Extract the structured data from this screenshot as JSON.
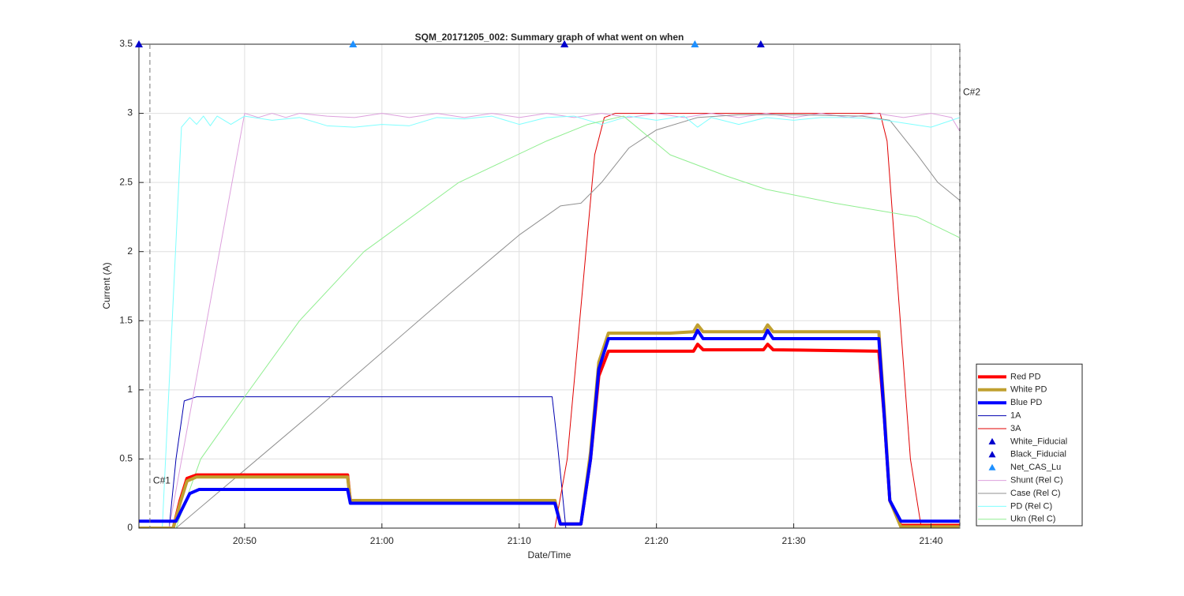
{
  "chart_data": {
    "type": "line",
    "title": "SQM_20171205_002: Summary graph of what went on when",
    "x_label": "Date/Time",
    "y_label": "Current (A)",
    "xlim": [
      1242.3,
      1302.1
    ],
    "xticks": [
      {
        "value": 1250,
        "label": "20:50"
      },
      {
        "value": 1260,
        "label": "21:00"
      },
      {
        "value": 1270,
        "label": "21:10"
      },
      {
        "value": 1280,
        "label": "21:20"
      },
      {
        "value": 1290,
        "label": "21:30"
      },
      {
        "value": 1300,
        "label": "21:40"
      }
    ],
    "ylim": [
      0,
      3.5
    ],
    "yticks": [
      0,
      0.5,
      1,
      1.5,
      2,
      2.5,
      3,
      3.5
    ],
    "grid": true,
    "legend": "lower-right-outside",
    "cursors": [
      {
        "label": "C#1",
        "x": 1243.1,
        "y": 0.34
      },
      {
        "label": "C#2",
        "x": 1302.1,
        "y": 3.15
      }
    ],
    "series": [
      {
        "name": "Red PD",
        "color": "#ff0000",
        "width": 4,
        "x": [
          1242.3,
          1244.8,
          1245.3,
          1245.8,
          1246.5,
          1257.5,
          1257.7,
          1272.6,
          1273.0,
          1274.5,
          1275.2,
          1275.8,
          1276.5,
          1281.0,
          1282.7,
          1283.0,
          1283.4,
          1287.8,
          1288.1,
          1288.5,
          1296.2,
          1296.6,
          1297.0,
          1297.8,
          1302.1
        ],
        "values": [
          0,
          0,
          0.2,
          0.36,
          0.385,
          0.385,
          0.2,
          0.2,
          0.03,
          0.03,
          0.5,
          1.1,
          1.28,
          1.28,
          1.28,
          1.33,
          1.29,
          1.29,
          1.33,
          1.29,
          1.28,
          0.8,
          0.2,
          0.02,
          0.02
        ]
      },
      {
        "name": "White PD",
        "color": "#c0a030",
        "width": 4,
        "x": [
          1242.3,
          1244.8,
          1245.3,
          1245.8,
          1246.5,
          1257.5,
          1257.7,
          1272.6,
          1273.0,
          1274.5,
          1275.2,
          1275.8,
          1276.5,
          1281.0,
          1282.7,
          1283.0,
          1283.4,
          1287.8,
          1288.1,
          1288.5,
          1296.2,
          1296.6,
          1297.0,
          1297.8,
          1302.1
        ],
        "values": [
          0,
          0,
          0.18,
          0.34,
          0.37,
          0.37,
          0.2,
          0.2,
          0.03,
          0.03,
          0.55,
          1.2,
          1.41,
          1.41,
          1.42,
          1.47,
          1.42,
          1.42,
          1.47,
          1.42,
          1.42,
          0.85,
          0.2,
          0.01,
          0.01
        ]
      },
      {
        "name": "Blue PD",
        "color": "#0000ff",
        "width": 4,
        "x": [
          1242.3,
          1245.0,
          1245.5,
          1246.0,
          1246.7,
          1257.5,
          1257.7,
          1272.6,
          1273.0,
          1274.5,
          1275.2,
          1275.8,
          1276.5,
          1281.0,
          1282.7,
          1283.0,
          1283.4,
          1287.8,
          1288.1,
          1288.5,
          1296.2,
          1296.6,
          1297.0,
          1297.8,
          1302.1
        ],
        "values": [
          0.05,
          0.05,
          0.15,
          0.25,
          0.28,
          0.28,
          0.18,
          0.18,
          0.03,
          0.03,
          0.5,
          1.15,
          1.37,
          1.37,
          1.37,
          1.43,
          1.37,
          1.37,
          1.43,
          1.37,
          1.37,
          0.8,
          0.2,
          0.05,
          0.05
        ]
      },
      {
        "name": "1A",
        "color": "#0000b0",
        "width": 1,
        "x": [
          1242.3,
          1244.5,
          1245.0,
          1245.6,
          1246.5,
          1272.4,
          1272.8,
          1273.4,
          1302.1
        ],
        "values": [
          0,
          0,
          0.5,
          0.92,
          0.95,
          0.95,
          0.6,
          0,
          0
        ]
      },
      {
        "name": "3A",
        "color": "#e00000",
        "width": 1,
        "x": [
          1242.3,
          1272.6,
          1273.5,
          1275.5,
          1276.2,
          1277.0,
          1296.3,
          1296.8,
          1298.5,
          1299.3,
          1302.1
        ],
        "values": [
          0,
          0,
          0.5,
          2.7,
          2.97,
          3.0,
          3.0,
          2.8,
          0.5,
          0,
          0
        ]
      },
      {
        "name": "White_Fiducial",
        "color": "#0000cd",
        "marker": "triangle",
        "x": [
          1242.3,
          1273.3,
          1287.6
        ],
        "values": [
          3.5,
          3.5,
          3.5
        ]
      },
      {
        "name": "Black_Fiducial",
        "color": "#0000cd",
        "marker": "triangle",
        "x": [
          1273.3
        ],
        "values": [
          3.5
        ]
      },
      {
        "name": "Net_CAS_Lu",
        "color": "#1e90ff",
        "marker": "triangle",
        "x": [
          1257.9,
          1282.8
        ],
        "values": [
          3.5,
          3.5
        ]
      },
      {
        "name": "Shunt (Rel C)",
        "color": "#dda0dd",
        "width": 1,
        "x": [
          1242.3,
          1244.5,
          1250.0,
          1251.0,
          1252.0,
          1253.0,
          1254.0,
          1256.0,
          1258.0,
          1260.0,
          1262.0,
          1264.0,
          1266.0,
          1268.0,
          1270.0,
          1272.0,
          1274.0,
          1276.0,
          1278.0,
          1280.0,
          1282.0,
          1284.0,
          1286.0,
          1288.0,
          1290.0,
          1292.0,
          1294.0,
          1296.0,
          1298.0,
          1300.0,
          1301.5,
          1302.1
        ],
        "values": [
          0,
          0,
          3.0,
          2.97,
          3.0,
          2.97,
          3.0,
          2.98,
          2.97,
          3.0,
          2.97,
          3.0,
          2.97,
          3.0,
          2.97,
          3.0,
          2.97,
          3.0,
          2.97,
          3.0,
          2.97,
          3.0,
          2.97,
          3.0,
          2.97,
          3.0,
          2.97,
          3.0,
          2.97,
          3.0,
          2.97,
          2.87
        ]
      },
      {
        "name": "Case (Rel C)",
        "color": "#909090",
        "width": 1,
        "x": [
          1242.3,
          1245.0,
          1250.0,
          1255.0,
          1260.0,
          1265.0,
          1270.0,
          1273.0,
          1274.5,
          1276.0,
          1278.0,
          1280.0,
          1283.0,
          1286.0,
          1290.0,
          1295.0,
          1297.0,
          1299.0,
          1300.5,
          1302.1
        ],
        "values": [
          0,
          0,
          0.42,
          0.84,
          1.27,
          1.7,
          2.12,
          2.33,
          2.35,
          2.5,
          2.75,
          2.88,
          2.97,
          2.99,
          2.99,
          2.98,
          2.95,
          2.7,
          2.5,
          2.37
        ]
      },
      {
        "name": "PD (Rel C)",
        "color": "#7fffff",
        "width": 1,
        "x": [
          1242.3,
          1244.0,
          1245.4,
          1246.0,
          1246.5,
          1247.0,
          1247.5,
          1248.0,
          1249.0,
          1250.0,
          1252.0,
          1254.0,
          1256.0,
          1258.0,
          1260.0,
          1262.0,
          1264.0,
          1266.0,
          1268.0,
          1270.0,
          1272.0,
          1274.0,
          1276.0,
          1278.0,
          1280.0,
          1282.0,
          1283.0,
          1284.0,
          1286.0,
          1288.0,
          1290.0,
          1292.0,
          1294.0,
          1296.0,
          1298.0,
          1300.0,
          1302.1
        ],
        "values": [
          0,
          0,
          2.9,
          2.97,
          2.92,
          2.98,
          2.91,
          2.98,
          2.92,
          2.98,
          2.95,
          2.97,
          2.91,
          2.9,
          2.92,
          2.91,
          2.97,
          2.96,
          2.98,
          2.92,
          2.97,
          2.98,
          2.92,
          2.98,
          2.95,
          2.98,
          2.9,
          2.97,
          2.92,
          2.97,
          2.95,
          2.97,
          2.97,
          2.96,
          2.93,
          2.9,
          2.97
        ]
      },
      {
        "name": "Ukn (Rel C)",
        "color": "#90ee90",
        "width": 1,
        "x": [
          1242.3,
          1245.0,
          1246.8,
          1250.0,
          1254.0,
          1258.7,
          1265.6,
          1272.0,
          1275.0,
          1277.6,
          1281.0,
          1285.0,
          1288.0,
          1293.0,
          1296.0,
          1299.0,
          1302.1
        ],
        "values": [
          0,
          0,
          0.5,
          0.95,
          1.5,
          2.0,
          2.5,
          2.8,
          2.92,
          2.98,
          2.7,
          2.55,
          2.45,
          2.35,
          2.3,
          2.25,
          2.1
        ]
      }
    ]
  }
}
